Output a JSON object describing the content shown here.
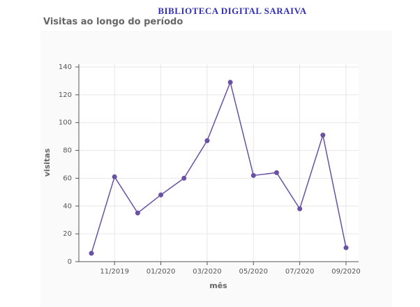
{
  "header": "BIBLIOTECA DIGITAL SARAIVA",
  "chart_data": {
    "type": "line",
    "title": "Visitas ao longo do período",
    "categories": [
      null,
      "11/2019",
      null,
      "01/2020",
      null,
      "03/2020",
      null,
      "05/2020",
      null,
      "07/2020",
      null,
      "09/2020"
    ],
    "values": [
      6,
      61,
      35,
      48,
      60,
      87,
      129,
      62,
      64,
      38,
      91,
      10
    ],
    "color": "#6a51a3",
    "xlabel": "mês",
    "ylabel": "visitas",
    "ylim": [
      0,
      140
    ],
    "yticks": [
      0,
      20,
      40,
      60,
      80,
      100,
      120,
      140
    ],
    "grid": true
  }
}
